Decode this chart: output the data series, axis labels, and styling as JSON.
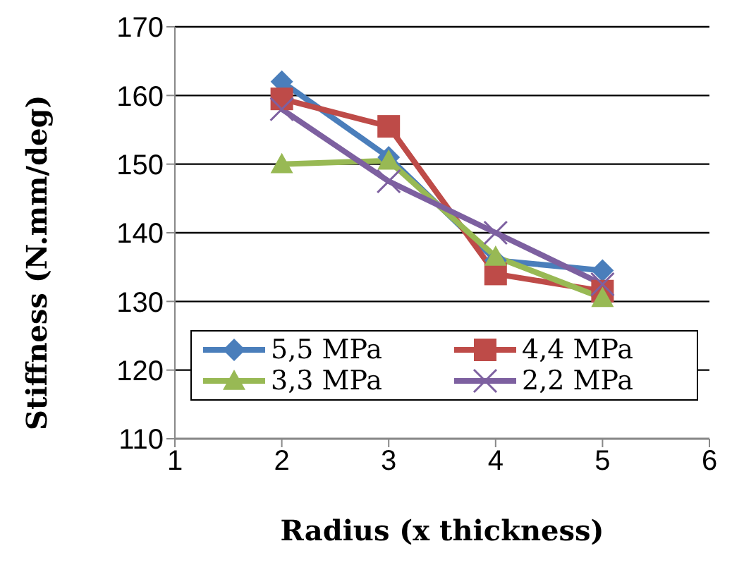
{
  "chart_data": {
    "type": "line",
    "xlabel": "Radius (x thickness)",
    "ylabel": "Stiffness (N.mm/deg)",
    "x": [
      2,
      3,
      4,
      5
    ],
    "xlim": [
      1,
      6
    ],
    "xticks": [
      1,
      2,
      3,
      4,
      5,
      6
    ],
    "ylim": [
      110,
      170
    ],
    "yticks": [
      110,
      120,
      130,
      140,
      150,
      160,
      170
    ],
    "grid": "y",
    "legend": "bottom",
    "series": [
      {
        "name": "5,5 MPa",
        "color": "#4a7ebb",
        "marker": "diamond",
        "values": [
          162,
          151,
          136,
          134.5
        ]
      },
      {
        "name": "4,4 MPa",
        "color": "#be4b48",
        "marker": "square",
        "values": [
          159.5,
          155.5,
          134,
          131.5
        ]
      },
      {
        "name": "3,3 MPa",
        "color": "#98b954",
        "marker": "triangle",
        "values": [
          150,
          150.5,
          136.5,
          130.5
        ]
      },
      {
        "name": "2,2 MPa",
        "color": "#7d60a0",
        "marker": "cross",
        "values": [
          158,
          147.5,
          140,
          132.5
        ]
      }
    ]
  }
}
